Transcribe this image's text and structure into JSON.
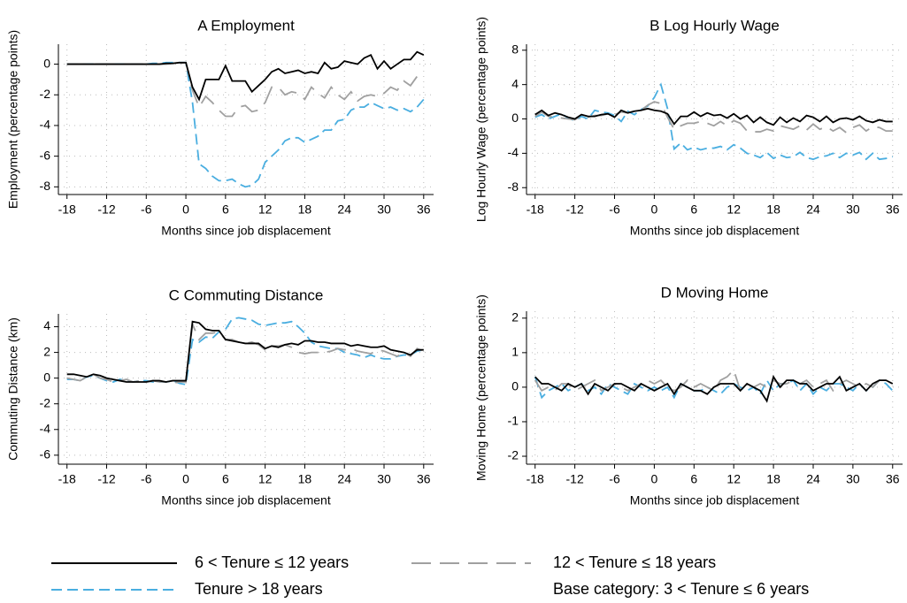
{
  "chart_data": [
    {
      "type": "line",
      "title": "A Employment",
      "ylabel": "Employment (percentage points)",
      "xlabel": "Months since job displacement",
      "xlim": [
        -19.3,
        37.5
      ],
      "xticks": [
        -18,
        -12,
        -6,
        0,
        6,
        12,
        18,
        24,
        30,
        36
      ],
      "ylim": [
        -8.5,
        1.3
      ],
      "yticks": [
        0,
        -2,
        -4,
        -6,
        -8
      ],
      "grid": true,
      "x": [
        -18,
        -17,
        -16,
        -15,
        -14,
        -13,
        -12,
        -11,
        -10,
        -9,
        -8,
        -7,
        -6,
        -5,
        -4,
        -3,
        -2,
        -1,
        0,
        1,
        2,
        3,
        4,
        5,
        6,
        7,
        8,
        9,
        10,
        11,
        12,
        13,
        14,
        15,
        16,
        17,
        18,
        19,
        20,
        21,
        22,
        23,
        24,
        25,
        26,
        27,
        28,
        29,
        30,
        31,
        32,
        33,
        34,
        35,
        36
      ],
      "series": [
        {
          "values": [
            0,
            0,
            0,
            0,
            0,
            0,
            0,
            0,
            0,
            0,
            0,
            0,
            0,
            0,
            0,
            0.05,
            0.05,
            0.1,
            0.1,
            -1.5,
            -2.3,
            -1.0,
            -1.0,
            -1.0,
            -0.1,
            -1.1,
            -1.1,
            -1.1,
            -1.8,
            -1.4,
            -1.0,
            -0.5,
            -0.3,
            -0.6,
            -0.5,
            -0.4,
            -0.6,
            -0.5,
            -0.6,
            0.1,
            -0.3,
            -0.2,
            0.2,
            0.1,
            0,
            0.4,
            0.6,
            -0.3,
            0.2,
            -0.3,
            0,
            0.3,
            0.3,
            0.8,
            0.6
          ]
        },
        {
          "values": [
            0,
            0,
            0,
            0,
            0,
            0,
            0,
            0,
            0,
            0,
            0,
            0,
            0,
            0,
            0,
            0,
            0.05,
            0.05,
            0.1,
            -1.7,
            -2.8,
            -2.1,
            -2.5,
            -3.0,
            -3.4,
            -3.4,
            -2.8,
            -2.7,
            -3.1,
            -3.0,
            -2.5,
            -1.5,
            -1.5,
            -2.0,
            -1.8,
            -1.9,
            -2.3,
            -1.5,
            -1.9,
            -2.2,
            -1.5,
            -2.0,
            -2.3,
            -1.8,
            -2.4,
            -2.1,
            -2.0,
            -2.1,
            -1.9,
            -1.5,
            -1.7,
            -1.1,
            -1.4,
            -0.8,
            -0.5
          ]
        },
        {
          "values": [
            0,
            0,
            0,
            0,
            0,
            0,
            0,
            0,
            0,
            0,
            0,
            0,
            0,
            0.05,
            0.05,
            0.1,
            0.1,
            0.1,
            0.1,
            -2.5,
            -6.5,
            -6.8,
            -7.3,
            -7.6,
            -7.6,
            -7.5,
            -7.8,
            -8.0,
            -7.9,
            -7.5,
            -6.4,
            -6.0,
            -5.6,
            -5.0,
            -4.8,
            -4.8,
            -5.1,
            -4.9,
            -4.7,
            -4.3,
            -4.3,
            -3.7,
            -3.6,
            -3.0,
            -2.8,
            -2.8,
            -2.5,
            -2.7,
            -2.9,
            -2.8,
            -3.0,
            -2.9,
            -3.1,
            -2.8,
            -2.3
          ]
        }
      ]
    },
    {
      "type": "line",
      "title": "B Log Hourly Wage",
      "ylabel": "Log Hourly Wage (percentage points)",
      "xlabel": "Months since job displacement",
      "xlim": [
        -19.3,
        37.5
      ],
      "xticks": [
        -18,
        -12,
        -6,
        0,
        6,
        12,
        18,
        24,
        30,
        36
      ],
      "ylim": [
        -8.8,
        8.7
      ],
      "yticks": [
        8,
        4,
        0,
        -4,
        -8
      ],
      "grid": true,
      "x": [
        -18,
        -17,
        -16,
        -15,
        -14,
        -13,
        -12,
        -11,
        -10,
        -9,
        -8,
        -7,
        -6,
        -5,
        -4,
        -3,
        -2,
        -1,
        0,
        1,
        2,
        3,
        4,
        5,
        6,
        7,
        8,
        9,
        10,
        11,
        12,
        13,
        14,
        15,
        16,
        17,
        18,
        19,
        20,
        21,
        22,
        23,
        24,
        25,
        26,
        27,
        28,
        29,
        30,
        31,
        32,
        33,
        34,
        35,
        36
      ],
      "series": [
        {
          "values": [
            0.5,
            1.0,
            0.4,
            0.7,
            0.5,
            0.2,
            0,
            0.5,
            0.3,
            0.3,
            0.5,
            0.6,
            0.2,
            1.0,
            0.7,
            0.9,
            1.0,
            1.2,
            1.0,
            0.9,
            0.6,
            -0.6,
            0.3,
            0.3,
            0.8,
            0.3,
            0.7,
            0.4,
            0.5,
            0.1,
            0.6,
            0,
            0.4,
            -0.4,
            0.2,
            -0.4,
            -0.7,
            0.2,
            -0.4,
            0.1,
            -0.3,
            0.4,
            0.2,
            -0.3,
            0.3,
            -0.4,
            0,
            0.1,
            -0.1,
            0.3,
            -0.2,
            -0.4,
            -0.1,
            -0.3,
            -0.3
          ]
        },
        {
          "values": [
            0.3,
            0.8,
            0.3,
            0.2,
            0.1,
            0,
            -0.1,
            0.4,
            0.2,
            0.4,
            0.4,
            0.6,
            0.5,
            0.8,
            0.7,
            0.9,
            1.0,
            1.6,
            2.0,
            1.8,
            0.2,
            -1.2,
            -0.8,
            -0.5,
            -0.5,
            -0.3,
            -0.5,
            -0.8,
            -0.3,
            -0.8,
            -0.2,
            -0.5,
            -1.4,
            -1.5,
            -1.5,
            -1.2,
            -1.4,
            -0.8,
            -1.0,
            -1.2,
            -0.8,
            -1.3,
            -0.6,
            -1.2,
            -0.9,
            -1.4,
            -1.0,
            -1.6,
            -1.0,
            -0.7,
            -1.4,
            -0.9,
            -1.0,
            -1.4,
            -1.4
          ]
        },
        {
          "values": [
            0.2,
            0.5,
            0,
            0.3,
            0.6,
            0.1,
            -0.2,
            0.3,
            0,
            1.0,
            0.8,
            0.7,
            0.4,
            -0.3,
            0.9,
            0.5,
            1.1,
            1.5,
            2.5,
            4.0,
            1.2,
            -3.5,
            -2.8,
            -3.6,
            -3.3,
            -3.6,
            -3.4,
            -3.4,
            -3.2,
            -3.6,
            -3.0,
            -3.4,
            -4.0,
            -4.2,
            -4.5,
            -3.9,
            -4.6,
            -4.2,
            -4.5,
            -4.4,
            -3.9,
            -4.5,
            -4.7,
            -4.4,
            -4.3,
            -4.0,
            -4.5,
            -4.0,
            -4.2,
            -3.9,
            -4.7,
            -4.0,
            -4.7,
            -4.6,
            -4.4
          ]
        }
      ]
    },
    {
      "type": "line",
      "title": "C Commuting Distance",
      "ylabel": "Commuting Distance (km)",
      "xlabel": "Months since job displacement",
      "xlim": [
        -19.3,
        37.5
      ],
      "xticks": [
        -18,
        -12,
        -6,
        0,
        6,
        12,
        18,
        24,
        30,
        36
      ],
      "ylim": [
        -6.7,
        5
      ],
      "yticks": [
        4,
        2,
        0,
        -2,
        -4,
        -6
      ],
      "grid": true,
      "x": [
        -18,
        -17,
        -16,
        -15,
        -14,
        -13,
        -12,
        -11,
        -10,
        -9,
        -8,
        -7,
        -6,
        -5,
        -4,
        -3,
        -2,
        -1,
        0,
        1,
        2,
        3,
        4,
        5,
        6,
        7,
        8,
        9,
        10,
        11,
        12,
        13,
        14,
        15,
        16,
        17,
        18,
        19,
        20,
        21,
        22,
        23,
        24,
        25,
        26,
        27,
        28,
        29,
        30,
        31,
        32,
        33,
        34,
        35,
        36
      ],
      "series": [
        {
          "values": [
            0.3,
            0.3,
            0.2,
            0.1,
            0.3,
            0.2,
            0,
            -0.1,
            -0.2,
            -0.3,
            -0.3,
            -0.3,
            -0.3,
            -0.2,
            -0.2,
            -0.3,
            -0.2,
            -0.2,
            -0.2,
            4.4,
            4.3,
            3.8,
            3.7,
            3.7,
            3.0,
            2.9,
            2.8,
            2.7,
            2.7,
            2.7,
            2.3,
            2.5,
            2.4,
            2.6,
            2.7,
            2.6,
            2.9,
            2.9,
            2.8,
            2.8,
            2.7,
            2.7,
            2.7,
            2.5,
            2.6,
            2.5,
            2.4,
            2.4,
            2.5,
            2.2,
            2.1,
            2.0,
            1.8,
            2.2,
            2.2
          ]
        },
        {
          "values": [
            0,
            -0.1,
            -0.2,
            0.1,
            0.3,
            0,
            -0.1,
            -0.3,
            -0.2,
            -0.1,
            -0.3,
            -0.2,
            -0.3,
            -0.2,
            -0.3,
            -0.3,
            -0.4,
            -0.3,
            -0.3,
            4.2,
            3.0,
            3.5,
            3.5,
            3.6,
            3.0,
            3.0,
            2.8,
            2.7,
            2.8,
            2.6,
            2.2,
            2.5,
            2.5,
            2.6,
            2.4,
            2.0,
            1.9,
            2.0,
            2.0,
            2.0,
            2.1,
            2.3,
            2.2,
            2.3,
            2.1,
            2.0,
            1.9,
            2.2,
            2.1,
            1.9,
            1.7,
            2.0,
            1.7,
            2.3,
            2.1
          ]
        },
        {
          "values": [
            -0.1,
            -0.1,
            -0.2,
            0.1,
            0.2,
            0,
            -0.2,
            -0.3,
            -0.1,
            -0.2,
            -0.3,
            -0.2,
            -0.2,
            -0.3,
            -0.3,
            -0.3,
            -0.2,
            -0.4,
            -0.5,
            3.0,
            2.8,
            3.2,
            3.1,
            3.6,
            3.8,
            4.6,
            4.7,
            4.6,
            4.5,
            4.2,
            4.1,
            4.2,
            4.3,
            4.3,
            4.4,
            4.0,
            3.5,
            2.8,
            2.5,
            2.4,
            2.3,
            2.3,
            2.0,
            1.9,
            1.8,
            1.6,
            1.8,
            1.6,
            1.5,
            1.5,
            1.7,
            1.8,
            1.8,
            2.1,
            2.2
          ]
        }
      ]
    },
    {
      "type": "line",
      "title": "D Moving Home",
      "ylabel": "Moving Home (percentage points)",
      "xlabel": "Months since job displacement",
      "xlim": [
        -19.3,
        37.5
      ],
      "xticks": [
        -18,
        -12,
        -6,
        0,
        6,
        12,
        18,
        24,
        30,
        36
      ],
      "ylim": [
        -2.23,
        2.2
      ],
      "yticks": [
        2,
        1,
        0,
        -1,
        -2
      ],
      "grid": true,
      "x": [
        -18,
        -17,
        -16,
        -15,
        -14,
        -13,
        -12,
        -11,
        -10,
        -9,
        -8,
        -7,
        -6,
        -5,
        -4,
        -3,
        -2,
        -1,
        0,
        1,
        2,
        3,
        4,
        5,
        6,
        7,
        8,
        9,
        10,
        11,
        12,
        13,
        14,
        15,
        16,
        17,
        18,
        19,
        20,
        21,
        22,
        23,
        24,
        25,
        26,
        27,
        28,
        29,
        30,
        31,
        32,
        33,
        34,
        35,
        36
      ],
      "series": [
        {
          "values": [
            0.3,
            0.1,
            0.1,
            0,
            -0.1,
            0.1,
            0,
            0.1,
            -0.2,
            0.1,
            0,
            -0.1,
            0.1,
            0.1,
            0,
            -0.1,
            0.1,
            0,
            -0.1,
            0,
            0.1,
            -0.2,
            0.1,
            0,
            -0.1,
            -0.1,
            -0.2,
            0,
            0.1,
            0.1,
            0.1,
            -0.1,
            0.1,
            0,
            -0.1,
            -0.4,
            0.3,
            0,
            0.2,
            0.2,
            0.1,
            0.1,
            -0.1,
            0,
            0.1,
            0.1,
            0.3,
            -0.1,
            0,
            0.1,
            -0.1,
            0.1,
            0.2,
            0.2,
            0.1
          ]
        },
        {
          "values": [
            0.2,
            -0.1,
            0,
            -0.1,
            0.1,
            0.1,
            -0.1,
            0,
            0.1,
            0.2,
            -0.1,
            0,
            0.1,
            0,
            -0.1,
            0,
            0.1,
            0.2,
            0.1,
            0.2,
            0,
            -0.1,
            0,
            0.2,
            0,
            0.1,
            0,
            -0.1,
            0.2,
            0.3,
            0.5,
            -0.1,
            0.1,
            0,
            0.1,
            0,
            0.2,
            0.1,
            0.1,
            0.2,
            0.1,
            0.2,
            0,
            0.1,
            0.2,
            -0.1,
            0.1,
            0.2,
            0.1,
            0,
            0.1,
            0,
            0.2,
            0.2,
            0.1
          ]
        },
        {
          "values": [
            0.3,
            -0.3,
            -0.1,
            0,
            0.1,
            -0.1,
            0,
            0.1,
            -0.1,
            0,
            -0.2,
            0.1,
            0,
            -0.1,
            -0.2,
            0.1,
            0,
            -0.1,
            0,
            -0.1,
            0,
            -0.3,
            0.1,
            0,
            -0.1,
            -0.1,
            0,
            -0.1,
            -0.2,
            0,
            0.1,
            0,
            -0.1,
            0,
            -0.2,
            0.2,
            -0.1,
            0.1,
            0.1,
            0.2,
            -0.1,
            0.1,
            -0.2,
            0,
            -0.1,
            0.1,
            0.1,
            0,
            -0.1,
            0.1,
            -0.1,
            0,
            0.2,
            0.1,
            -0.1
          ]
        }
      ]
    }
  ],
  "legend": {
    "items": [
      {
        "name": "6 < Tenure ≤ 12 years",
        "color": "#000000",
        "dash": "none"
      },
      {
        "name": "12 < Tenure ≤ 18 years",
        "color": "#a0a0a0",
        "dash": "long"
      },
      {
        "name": "Tenure > 18 years",
        "color": "#4aaee0",
        "dash": "short"
      }
    ],
    "note": "Base category: 3 < Tenure ≤ 6 years"
  }
}
